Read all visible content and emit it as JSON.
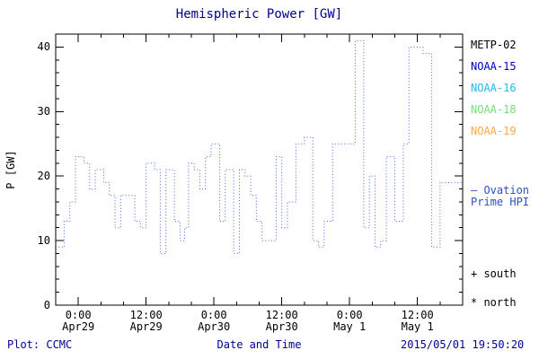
{
  "title": "Hemispheric Power [GW]",
  "colors": {
    "navy": "#000090",
    "axis": "#000000",
    "line": "#4169e1"
  },
  "axes": {
    "ylabel": "P [GW]",
    "xlabel": "Date and Time"
  },
  "legend": {
    "satellites": [
      {
        "label": "METP-02",
        "color": "#000000"
      },
      {
        "label": "NOAA-15",
        "color": "#0000cc"
      },
      {
        "label": "NOAA-16",
        "color": "#22bbee"
      },
      {
        "label": "NOAA-18",
        "color": "#77dd77"
      },
      {
        "label": "NOAA-19",
        "color": "#ffaa44"
      }
    ],
    "series_label_line1": "– Ovation",
    "series_label_line2": "Prime HPI",
    "series_color": "#2a52be",
    "south_label": "+ south",
    "north_label": "* north"
  },
  "footer": {
    "plot_credit": "Plot: CCMC",
    "timestamp": "2015/05/01 19:50:20"
  },
  "chart_data": {
    "type": "line",
    "style": "stepped-dotted",
    "title": "Hemispheric Power [GW]",
    "xlabel": "Date and Time",
    "ylabel": "P [GW]",
    "ylim": [
      0,
      42
    ],
    "yticks": [
      0,
      10,
      20,
      30,
      40
    ],
    "y_minor_step": 2,
    "x_hours_range": [
      0,
      72
    ],
    "x_minor_step": 4,
    "grid": false,
    "legend_position": "right",
    "line_color": "#4169e1",
    "xticks": [
      {
        "hour": 4,
        "time": "0:00",
        "date": "Apr29"
      },
      {
        "hour": 16,
        "time": "12:00",
        "date": "Apr29"
      },
      {
        "hour": 28,
        "time": "0:00",
        "date": "Apr30"
      },
      {
        "hour": 40,
        "time": "12:00",
        "date": "Apr30"
      },
      {
        "hour": 52,
        "time": "0:00",
        "date": "May 1"
      },
      {
        "hour": 64,
        "time": "12:00",
        "date": "May 1"
      }
    ],
    "series": [
      {
        "name": "Ovation Prime HPI",
        "step_hours": [
          0,
          1.5,
          2.5,
          3.5,
          5,
          6,
          7,
          8.5,
          9.5,
          10.5,
          11.5,
          13,
          14,
          15,
          16,
          17.5,
          18.5,
          19.5,
          21,
          22,
          22.8,
          23.5,
          24.5,
          25.5,
          26.5,
          27.5,
          29,
          30,
          31.5,
          32.5,
          33.5,
          34.5,
          35.5,
          36.5,
          38,
          39,
          40,
          41,
          42.5,
          44,
          45.5,
          46.5,
          47.5,
          49,
          53,
          54.5,
          55.5,
          56.5,
          57.5,
          58.5,
          60,
          61.5,
          62.5,
          65,
          66.5,
          68
        ],
        "values": [
          9,
          13,
          16,
          23,
          22,
          18,
          21,
          19,
          17,
          12,
          17,
          17,
          13,
          12,
          22,
          21,
          8,
          21,
          13,
          10,
          12,
          22,
          21,
          18,
          23,
          25,
          13,
          21,
          8,
          21,
          20,
          17,
          13,
          10,
          10,
          23,
          12,
          16,
          25,
          26,
          10,
          9,
          13,
          25,
          41,
          12,
          20,
          9,
          10,
          23,
          13,
          25,
          40,
          39,
          9,
          19
        ]
      }
    ]
  }
}
